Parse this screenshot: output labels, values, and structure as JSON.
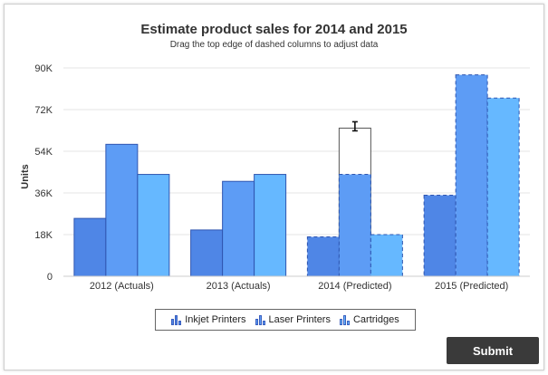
{
  "chart_data": {
    "type": "bar",
    "title": "Estimate product sales for 2014 and 2015",
    "subtitle": "Drag the top edge of dashed columns to adjust data",
    "ylabel": "Units",
    "ylim": [
      0,
      90000
    ],
    "yticks": [
      "0",
      "18K",
      "36K",
      "54K",
      "72K",
      "90K"
    ],
    "ytick_values": [
      0,
      18000,
      36000,
      54000,
      72000,
      90000
    ],
    "categories": [
      "2012 (Actuals)",
      "2013 (Actuals)",
      "2014 (Predicted)",
      "2015 (Predicted)"
    ],
    "editable": [
      false,
      false,
      true,
      true
    ],
    "series": [
      {
        "name": "Inkjet Printers",
        "values": [
          25000,
          20000,
          17000,
          35000
        ],
        "color": "#4f86e6"
      },
      {
        "name": "Laser Printers",
        "values": [
          57000,
          41000,
          44000,
          87000
        ],
        "color": "#5d9cf5"
      },
      {
        "name": "Cartridges",
        "values": [
          44000,
          44000,
          18000,
          77000
        ],
        "color": "#66b8ff"
      }
    ],
    "ghost_bar": {
      "category_index": 2,
      "series_index": 1,
      "value": 64000
    },
    "legend_position": "bottom-center",
    "grid": true
  },
  "submit_label": "Submit"
}
